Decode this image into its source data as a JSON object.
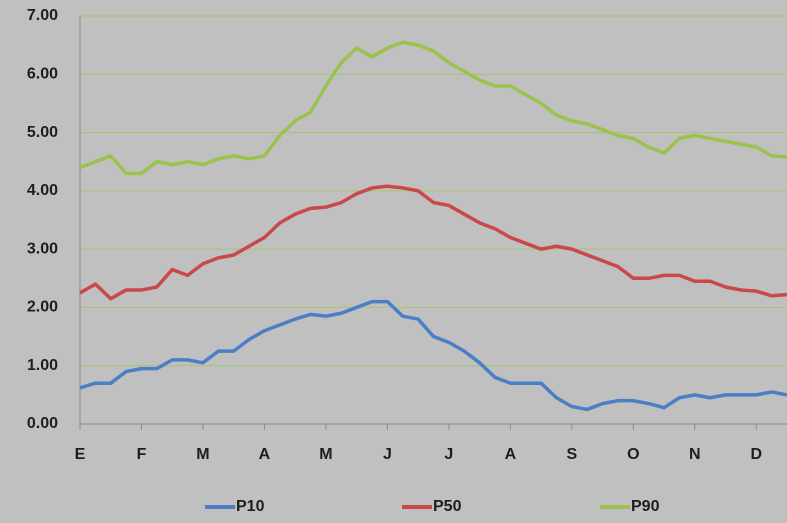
{
  "chart_data": {
    "type": "line",
    "x": [
      0,
      0.25,
      0.5,
      0.75,
      1,
      1.25,
      1.5,
      1.75,
      2,
      2.25,
      2.5,
      2.75,
      3,
      3.25,
      3.5,
      3.75,
      4,
      4.25,
      4.5,
      4.75,
      5,
      5.25,
      5.5,
      5.75,
      6,
      6.25,
      6.5,
      6.75,
      7,
      7.25,
      7.5,
      7.75,
      8,
      8.25,
      8.5,
      8.75,
      9,
      9.25,
      9.5,
      9.75,
      10,
      10.25,
      10.5,
      10.75,
      11,
      11.25,
      11.5
    ],
    "series": [
      {
        "name": "P10",
        "color": "#4a7fc8",
        "values": [
          0.62,
          0.7,
          0.7,
          0.9,
          0.95,
          0.95,
          1.1,
          1.1,
          1.05,
          1.25,
          1.25,
          1.45,
          1.6,
          1.7,
          1.8,
          1.88,
          1.85,
          1.9,
          2.0,
          2.1,
          2.1,
          1.85,
          1.8,
          1.5,
          1.4,
          1.25,
          1.05,
          0.8,
          0.7,
          0.7,
          0.7,
          0.45,
          0.3,
          0.25,
          0.35,
          0.4,
          0.4,
          0.35,
          0.28,
          0.45,
          0.5,
          0.45,
          0.5,
          0.5,
          0.5,
          0.55,
          0.5
        ]
      },
      {
        "name": "P50",
        "color": "#c9484a",
        "values": [
          2.25,
          2.4,
          2.15,
          2.3,
          2.3,
          2.35,
          2.65,
          2.55,
          2.75,
          2.85,
          2.9,
          3.05,
          3.2,
          3.45,
          3.6,
          3.7,
          3.72,
          3.8,
          3.95,
          4.05,
          4.08,
          4.05,
          4.0,
          3.8,
          3.75,
          3.6,
          3.45,
          3.35,
          3.2,
          3.1,
          3.0,
          3.05,
          3.0,
          2.9,
          2.8,
          2.7,
          2.5,
          2.5,
          2.55,
          2.55,
          2.45,
          2.45,
          2.35,
          2.3,
          2.28,
          2.2,
          2.22
        ]
      },
      {
        "name": "P90",
        "color": "#9bc24c",
        "values": [
          4.4,
          4.5,
          4.6,
          4.3,
          4.3,
          4.5,
          4.45,
          4.5,
          4.45,
          4.55,
          4.6,
          4.55,
          4.6,
          4.95,
          5.2,
          5.35,
          5.8,
          6.2,
          6.45,
          6.3,
          6.45,
          6.55,
          6.5,
          6.4,
          6.2,
          6.05,
          5.9,
          5.8,
          5.8,
          5.65,
          5.5,
          5.3,
          5.2,
          5.15,
          5.05,
          4.95,
          4.9,
          4.75,
          4.65,
          4.9,
          4.95,
          4.9,
          4.85,
          4.8,
          4.75,
          4.6,
          4.58
        ]
      }
    ],
    "xlim": [
      0,
      11.5
    ],
    "xticks": [
      {
        "value": 0,
        "label": "E"
      },
      {
        "value": 1,
        "label": "F"
      },
      {
        "value": 2,
        "label": "M"
      },
      {
        "value": 3,
        "label": "A"
      },
      {
        "value": 4,
        "label": "M"
      },
      {
        "value": 5,
        "label": "J"
      },
      {
        "value": 6,
        "label": "J"
      },
      {
        "value": 7,
        "label": "A"
      },
      {
        "value": 8,
        "label": "S"
      },
      {
        "value": 9,
        "label": "O"
      },
      {
        "value": 10,
        "label": "N"
      },
      {
        "value": 11,
        "label": "D"
      }
    ],
    "ylim": [
      0,
      7
    ],
    "yticks": [
      {
        "value": 0,
        "label": "0.00"
      },
      {
        "value": 1,
        "label": "1.00"
      },
      {
        "value": 2,
        "label": "2.00"
      },
      {
        "value": 3,
        "label": "3.00"
      },
      {
        "value": 4,
        "label": "4.00"
      },
      {
        "value": 5,
        "label": "5.00"
      },
      {
        "value": 6,
        "label": "6.00"
      },
      {
        "value": 7,
        "label": "7.00"
      }
    ],
    "grid": true,
    "grid_color": "#a8c46c",
    "legend": "bottom"
  }
}
